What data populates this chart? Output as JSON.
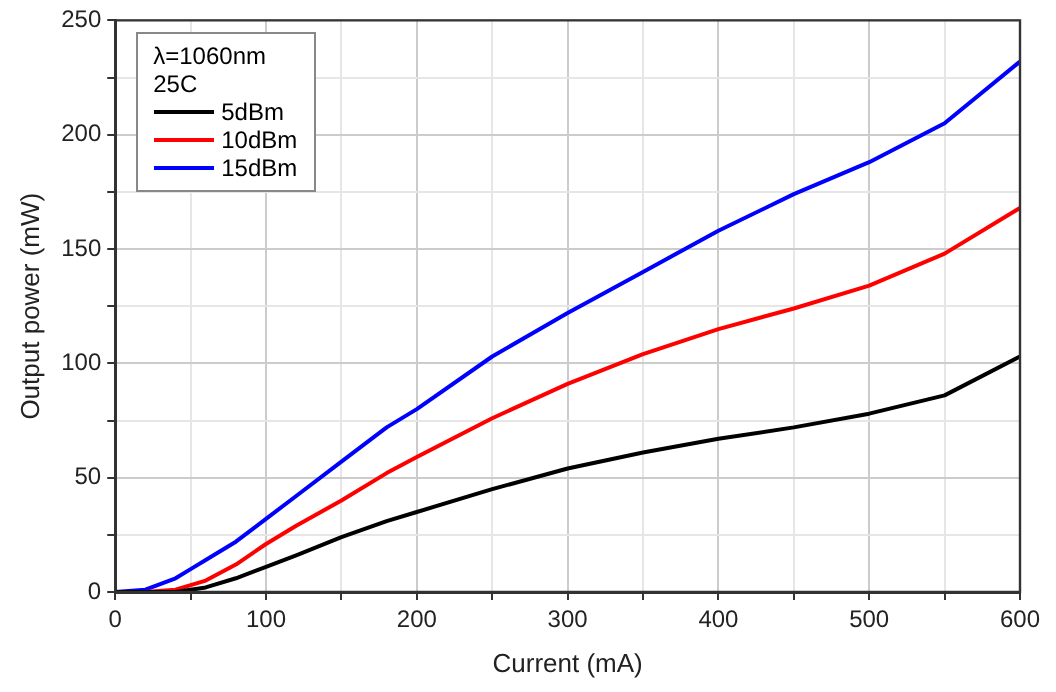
{
  "chart_data": {
    "type": "line",
    "xlabel": "Current (mA)",
    "ylabel": "Output power (mW)",
    "legend_title": "λ=1060nm\n25C",
    "legend": "top left",
    "grid": true,
    "marker": "none",
    "line_style": "solid",
    "xlim": [
      0,
      600
    ],
    "ylim": [
      0,
      250
    ],
    "xticks": [
      0,
      {
        "value": 50,
        "label": null
      },
      100,
      {
        "value": 150,
        "label": null
      },
      200,
      {
        "value": 250,
        "label": null
      },
      300,
      {
        "value": 350,
        "label": null
      },
      400,
      {
        "value": 450,
        "label": null
      },
      500,
      {
        "value": 550,
        "label": null
      },
      600
    ],
    "yticks": [
      0,
      {
        "value": 25,
        "label": null
      },
      50,
      {
        "value": 75,
        "label": null
      },
      100,
      {
        "value": 125,
        "label": null
      },
      150,
      {
        "value": 175,
        "label": null
      },
      200,
      {
        "value": 225,
        "label": null
      },
      250
    ],
    "x": [
      0,
      20,
      40,
      50,
      60,
      80,
      100,
      120,
      150,
      180,
      200,
      250,
      300,
      350,
      400,
      450,
      500,
      550,
      600
    ],
    "series": [
      {
        "name": "5dBm",
        "color": "#000000",
        "values": [
          0,
          0,
          0,
          1,
          2,
          6,
          11,
          16,
          24,
          31,
          35,
          45,
          54,
          61,
          67,
          72,
          78,
          86,
          103
        ]
      },
      {
        "name": "10dBm",
        "color": "#ff0000",
        "values": [
          0,
          0,
          1,
          3,
          5,
          12,
          21,
          29,
          40,
          52,
          59,
          76,
          91,
          104,
          115,
          124,
          134,
          148,
          168
        ]
      },
      {
        "name": "15dBm",
        "color": "#0000ff",
        "values": [
          0,
          1,
          6,
          10,
          14,
          22,
          32,
          42,
          57,
          72,
          80,
          103,
          122,
          140,
          158,
          174,
          188,
          205,
          232
        ]
      }
    ]
  }
}
